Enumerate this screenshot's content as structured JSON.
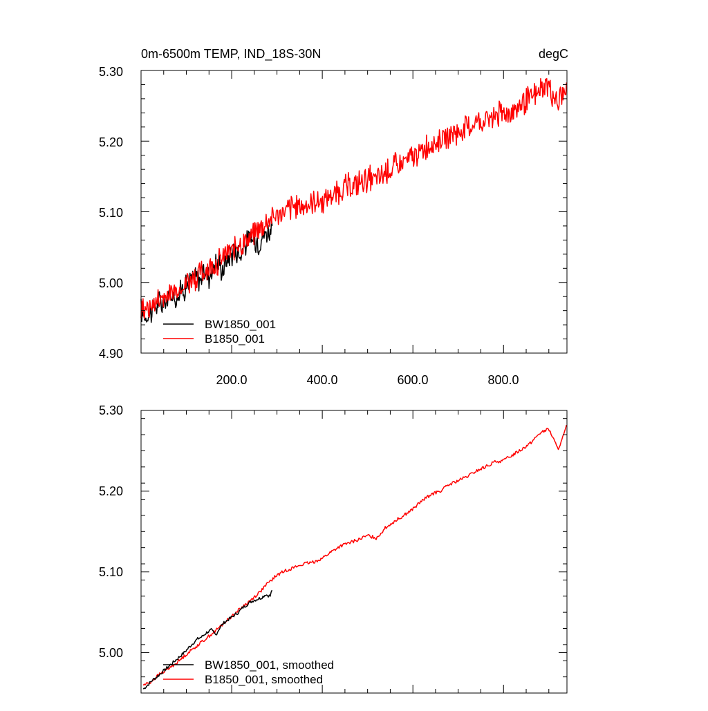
{
  "chart_data": [
    {
      "type": "line",
      "title": "0m-6500m TEMP, IND_18S-30N",
      "units_label": "degC",
      "xlim": [
        0,
        940
      ],
      "ylim": [
        4.9,
        5.3
      ],
      "x_ticks": [
        "200.0",
        "400.0",
        "600.0",
        "800.0"
      ],
      "x_tick_values": [
        200,
        400,
        600,
        800
      ],
      "y_ticks": [
        "4.90",
        "5.00",
        "5.10",
        "5.20",
        "5.30"
      ],
      "y_tick_values": [
        4.9,
        5.0,
        5.1,
        5.2,
        5.3
      ],
      "legend_position": "bottom-left",
      "series": [
        {
          "name": "BW1850_001",
          "color": "#000000",
          "x": [
            0,
            10,
            20,
            30,
            40,
            50,
            60,
            70,
            80,
            90,
            100,
            110,
            120,
            130,
            140,
            150,
            160,
            170,
            180,
            190,
            200,
            210,
            220,
            230,
            240,
            250,
            260,
            270,
            280,
            290
          ],
          "y": [
            4.96,
            4.952,
            4.958,
            4.965,
            4.972,
            4.968,
            4.978,
            4.983,
            4.98,
            4.99,
            4.996,
            5.002,
            5.008,
            5.004,
            5.015,
            5.01,
            5.022,
            5.028,
            5.018,
            5.035,
            5.042,
            5.046,
            5.04,
            5.055,
            5.06,
            5.062,
            5.058,
            5.068,
            5.072,
            5.078
          ]
        },
        {
          "name": "B1850_001",
          "color": "#ff0000",
          "x": [
            0,
            20,
            40,
            60,
            80,
            100,
            120,
            140,
            160,
            180,
            200,
            220,
            240,
            260,
            280,
            300,
            320,
            340,
            360,
            380,
            400,
            420,
            440,
            460,
            480,
            500,
            520,
            540,
            560,
            580,
            600,
            620,
            640,
            660,
            680,
            700,
            720,
            740,
            760,
            780,
            800,
            820,
            840,
            860,
            880,
            900,
            910,
            920,
            930,
            940
          ],
          "y": [
            4.962,
            4.965,
            4.975,
            4.983,
            4.99,
            5.0,
            5.008,
            5.016,
            5.025,
            5.034,
            5.045,
            5.055,
            5.065,
            5.075,
            5.086,
            5.096,
            5.101,
            5.106,
            5.109,
            5.112,
            5.116,
            5.124,
            5.131,
            5.136,
            5.14,
            5.146,
            5.145,
            5.155,
            5.163,
            5.17,
            5.178,
            5.188,
            5.196,
            5.2,
            5.207,
            5.212,
            5.218,
            5.225,
            5.23,
            5.236,
            5.238,
            5.245,
            5.252,
            5.26,
            5.272,
            5.278,
            5.265,
            5.252,
            5.265,
            5.282
          ]
        }
      ]
    },
    {
      "type": "line",
      "xlim": [
        0,
        940
      ],
      "ylim": [
        4.95,
        5.3
      ],
      "x_tick_values": [
        200,
        400,
        600,
        800
      ],
      "y_ticks": [
        "5.00",
        "5.10",
        "5.20",
        "5.30"
      ],
      "y_tick_values": [
        5.0,
        5.1,
        5.2,
        5.3
      ],
      "legend_position": "bottom-left",
      "series": [
        {
          "name": "BW1850_001, smoothed",
          "color": "#000000",
          "x": [
            5,
            15,
            25,
            35,
            45,
            55,
            65,
            75,
            85,
            95,
            105,
            115,
            125,
            135,
            145,
            155,
            165,
            175,
            185,
            195,
            205,
            215,
            225,
            235,
            245,
            255,
            265,
            275,
            285,
            290
          ],
          "y": [
            4.955,
            4.96,
            4.966,
            4.97,
            4.975,
            4.98,
            4.985,
            4.99,
            4.995,
            5.0,
            5.006,
            5.012,
            5.017,
            5.02,
            5.025,
            5.028,
            5.022,
            5.032,
            5.038,
            5.042,
            5.046,
            5.05,
            5.056,
            5.06,
            5.064,
            5.066,
            5.068,
            5.072,
            5.07,
            5.08
          ]
        },
        {
          "name": "B1850_001, smoothed",
          "color": "#ff0000",
          "x": [
            5,
            20,
            40,
            60,
            80,
            100,
            120,
            140,
            160,
            180,
            200,
            220,
            240,
            260,
            280,
            300,
            320,
            340,
            360,
            380,
            400,
            420,
            440,
            460,
            480,
            500,
            520,
            540,
            560,
            580,
            600,
            620,
            640,
            660,
            680,
            700,
            720,
            740,
            760,
            780,
            800,
            820,
            840,
            860,
            880,
            900,
            910,
            920,
            930,
            940
          ],
          "y": [
            4.96,
            4.963,
            4.973,
            4.98,
            4.988,
            4.998,
            5.007,
            5.016,
            5.025,
            5.035,
            5.045,
            5.055,
            5.064,
            5.074,
            5.086,
            5.096,
            5.102,
            5.106,
            5.11,
            5.112,
            5.117,
            5.125,
            5.132,
            5.136,
            5.14,
            5.145,
            5.142,
            5.155,
            5.163,
            5.17,
            5.178,
            5.188,
            5.196,
            5.2,
            5.208,
            5.213,
            5.218,
            5.225,
            5.23,
            5.236,
            5.238,
            5.245,
            5.252,
            5.26,
            5.272,
            5.277,
            5.265,
            5.252,
            5.265,
            5.282
          ]
        }
      ]
    }
  ]
}
